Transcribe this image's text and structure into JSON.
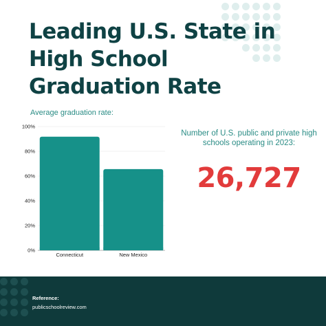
{
  "header": {
    "title_lines": [
      "Leading U.S. State in",
      "High School",
      "Graduation Rate"
    ]
  },
  "chart_data": {
    "type": "bar",
    "title": "Average graduation rate:",
    "categories": [
      "Connecticut",
      "New Mexico"
    ],
    "values": [
      91.8,
      65.6
    ],
    "ylim": [
      0,
      100
    ],
    "yticks": [
      "0%",
      "20%",
      "40%",
      "60%",
      "80%",
      "100%"
    ],
    "bar_color": "#169189",
    "grid": true
  },
  "stat": {
    "caption": "Number of U.S. public and private high schools operating in 2023:",
    "value": "26,727"
  },
  "footer": {
    "reference_label": "Reference:",
    "reference_value": "publicschoolreview.com"
  },
  "colors": {
    "title": "#0f4244",
    "accent_teal": "#2a8c85",
    "stat_red": "#e23b3b",
    "footer_bg": "#0f3a3b",
    "dots_light": "#dfeeed",
    "dots_footer": "#1e4f50"
  }
}
